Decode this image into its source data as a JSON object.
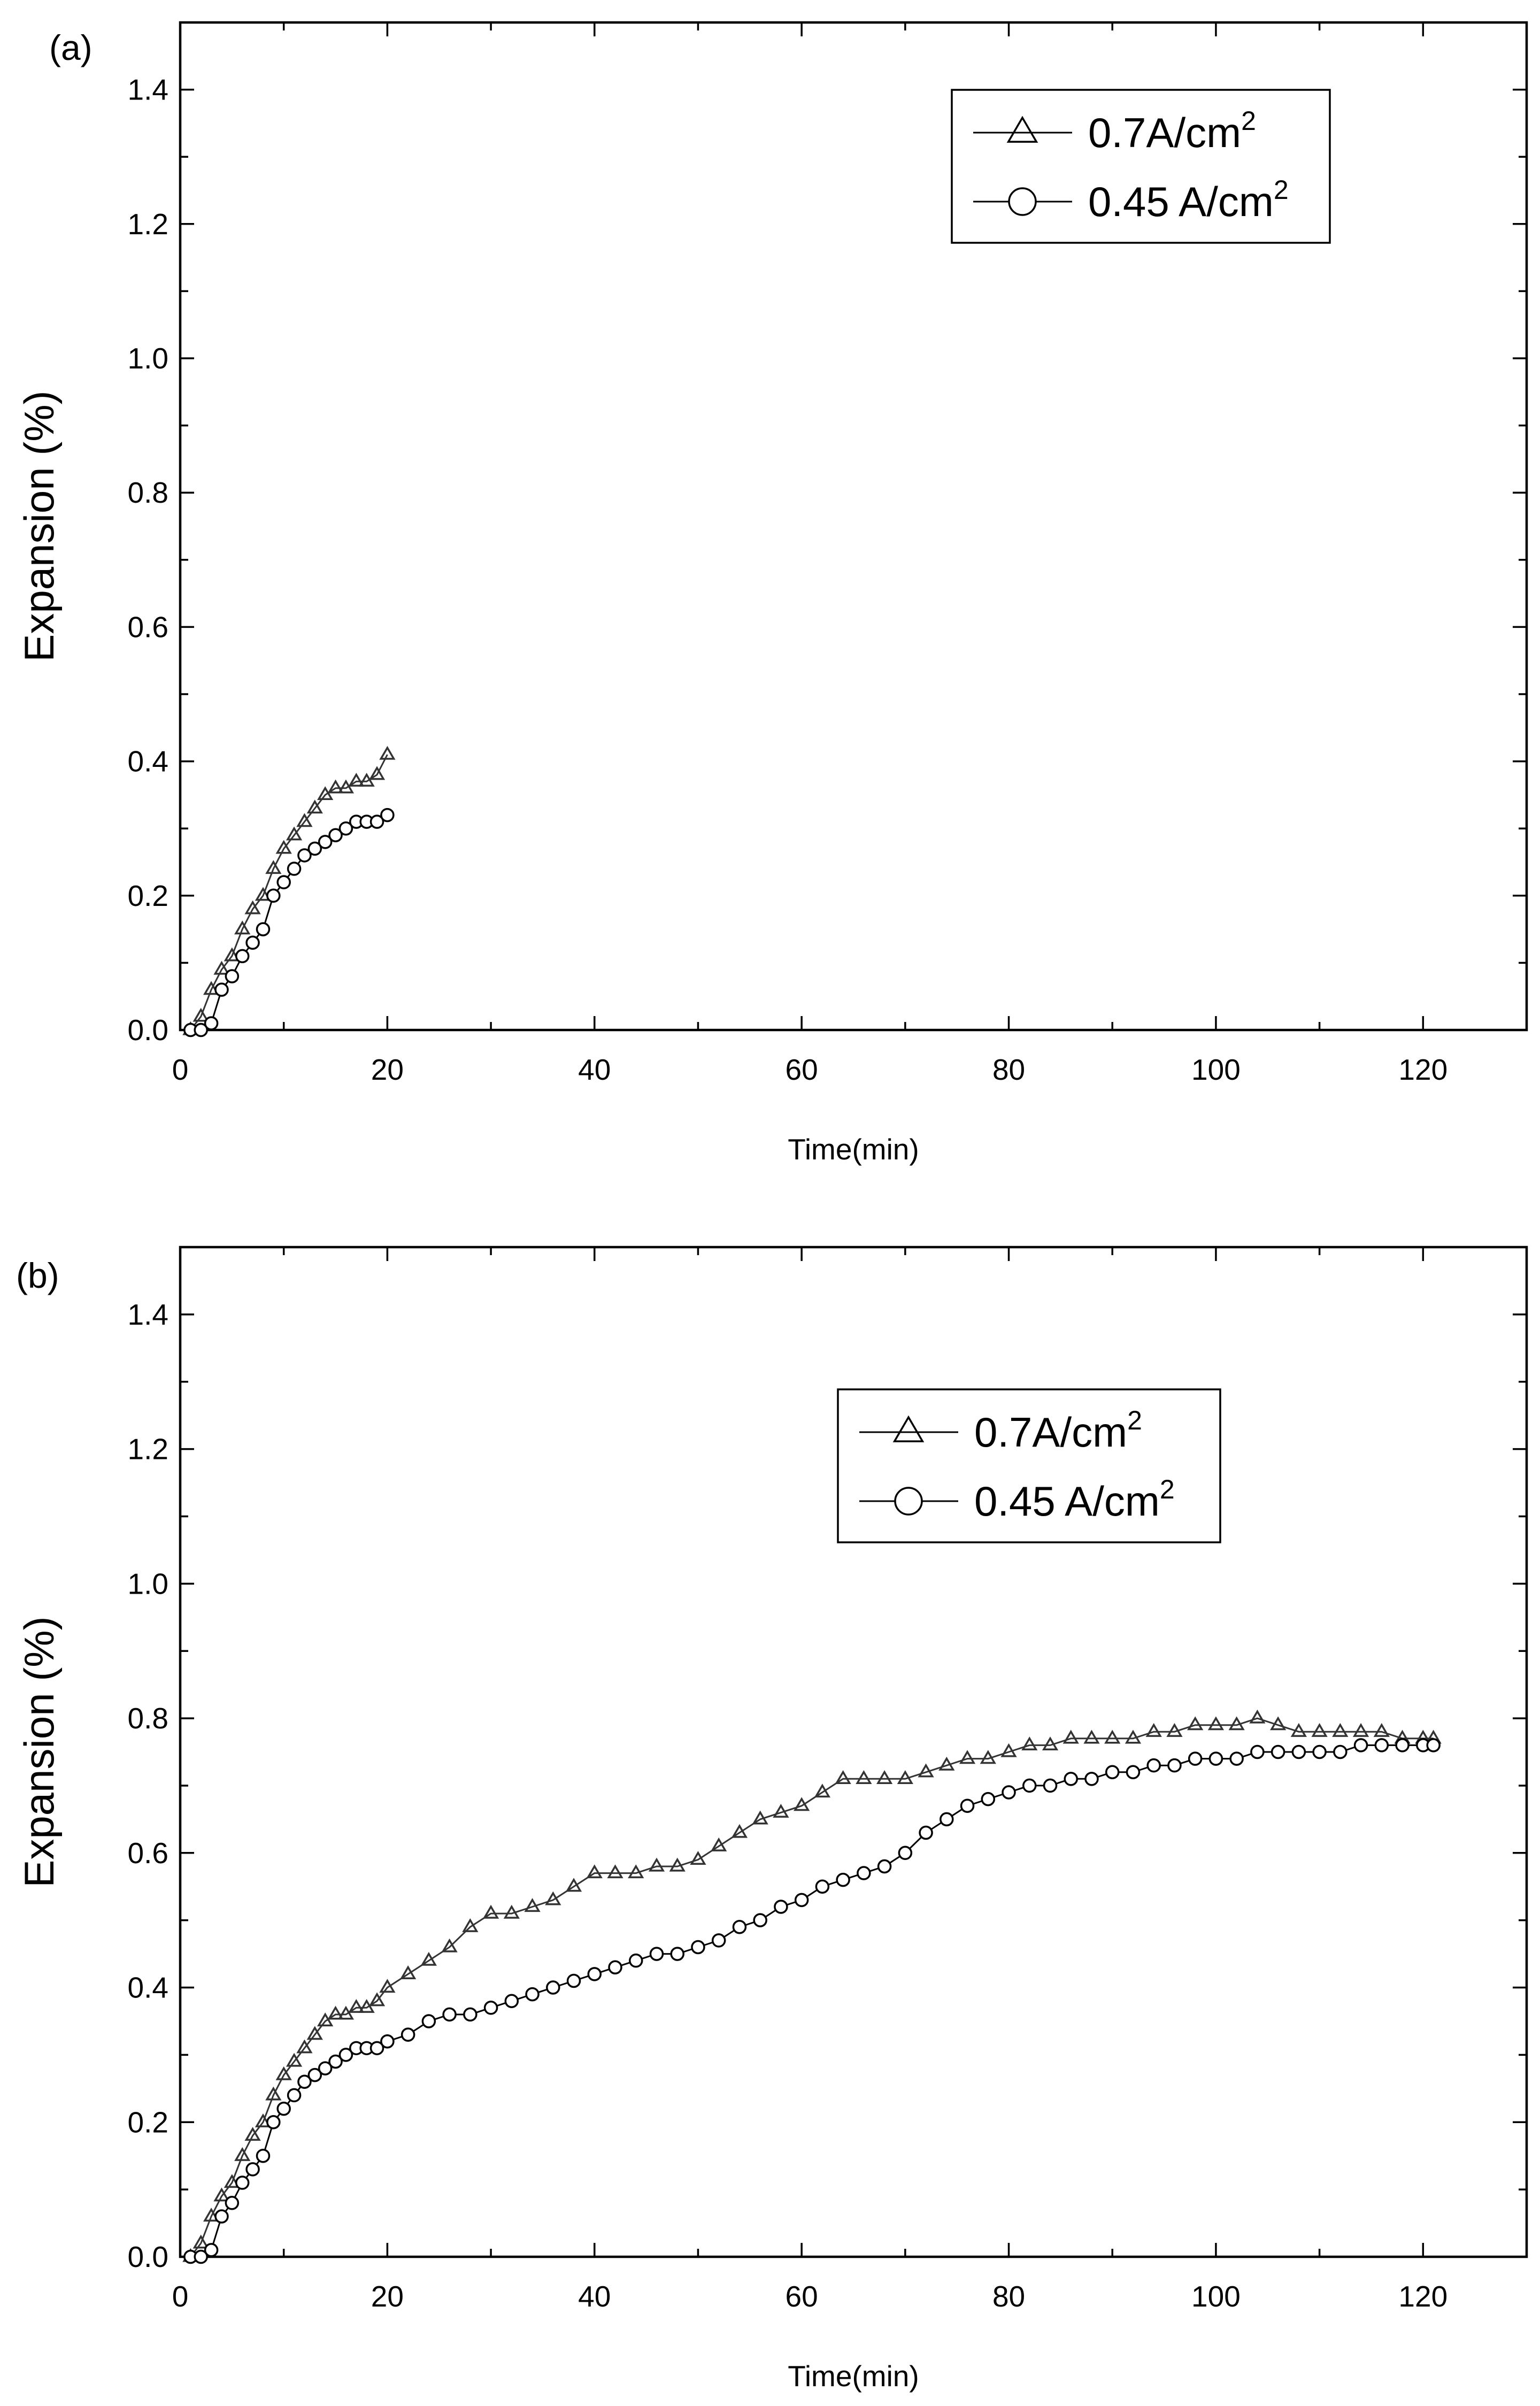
{
  "chart_data": [
    {
      "type": "line",
      "panel_label": "(a)",
      "title": "",
      "xlabel": "Time(min)",
      "ylabel": "Expansion (%)",
      "xlim": [
        0,
        130
      ],
      "ylim": [
        0,
        1.5
      ],
      "xticks": [
        0,
        20,
        40,
        60,
        80,
        100,
        120
      ],
      "yticks": [
        0.0,
        0.2,
        0.4,
        0.6,
        0.8,
        1.0,
        1.2,
        1.4
      ],
      "xtick_labels": [
        "0",
        "20",
        "40",
        "60",
        "80",
        "100",
        "120"
      ],
      "ytick_labels": [
        "0.0",
        "0.2",
        "0.4",
        "0.6",
        "0.8",
        "1.0",
        "1.2",
        "1.4"
      ],
      "legend_position": "top-right",
      "series": [
        {
          "name": "0.7A/cm",
          "name_sup": "2",
          "marker": "triangle",
          "x": [
            1,
            2,
            3,
            4,
            5,
            6,
            7,
            8,
            9,
            10,
            11,
            12,
            13,
            14,
            15,
            16,
            17,
            18,
            19,
            20
          ],
          "y": [
            0.0,
            0.02,
            0.06,
            0.09,
            0.11,
            0.15,
            0.18,
            0.2,
            0.24,
            0.27,
            0.29,
            0.31,
            0.33,
            0.35,
            0.36,
            0.36,
            0.37,
            0.37,
            0.38,
            0.41
          ]
        },
        {
          "name": "0.45 A/cm",
          "name_sup": "2",
          "marker": "circle",
          "x": [
            1,
            2,
            3,
            4,
            5,
            6,
            7,
            8,
            9,
            10,
            11,
            12,
            13,
            14,
            15,
            16,
            17,
            18,
            19,
            20
          ],
          "y": [
            0.0,
            0.0,
            0.01,
            0.06,
            0.08,
            0.11,
            0.13,
            0.15,
            0.2,
            0.22,
            0.24,
            0.26,
            0.27,
            0.28,
            0.29,
            0.3,
            0.31,
            0.31,
            0.31,
            0.32
          ]
        }
      ]
    },
    {
      "type": "line",
      "panel_label": "(b)",
      "title": "",
      "xlabel": "Time(min)",
      "ylabel": "Expansion (%)",
      "xlim": [
        0,
        130
      ],
      "ylim": [
        0,
        1.5
      ],
      "xticks": [
        0,
        20,
        40,
        60,
        80,
        100,
        120
      ],
      "yticks": [
        0.0,
        0.2,
        0.4,
        0.6,
        0.8,
        1.0,
        1.2,
        1.4
      ],
      "xtick_labels": [
        "0",
        "20",
        "40",
        "60",
        "80",
        "100",
        "120"
      ],
      "ytick_labels": [
        "0.0",
        "0.2",
        "0.4",
        "0.6",
        "0.8",
        "1.0",
        "1.2",
        "1.4"
      ],
      "legend_position": "top-center",
      "series": [
        {
          "name": "0.7A/cm",
          "name_sup": "2",
          "marker": "triangle",
          "x": [
            1,
            2,
            3,
            4,
            5,
            6,
            7,
            8,
            9,
            10,
            11,
            12,
            13,
            14,
            15,
            16,
            17,
            18,
            19,
            20,
            22,
            24,
            26,
            28,
            30,
            32,
            34,
            36,
            38,
            40,
            42,
            44,
            46,
            48,
            50,
            52,
            54,
            56,
            58,
            60,
            62,
            64,
            66,
            68,
            70,
            72,
            74,
            76,
            78,
            80,
            82,
            84,
            86,
            88,
            90,
            92,
            94,
            96,
            98,
            100,
            102,
            104,
            106,
            108,
            110,
            112,
            114,
            116,
            118,
            120,
            121
          ],
          "y": [
            0.0,
            0.02,
            0.06,
            0.09,
            0.11,
            0.15,
            0.18,
            0.2,
            0.24,
            0.27,
            0.29,
            0.31,
            0.33,
            0.35,
            0.36,
            0.36,
            0.37,
            0.37,
            0.38,
            0.4,
            0.42,
            0.44,
            0.46,
            0.49,
            0.51,
            0.51,
            0.52,
            0.53,
            0.55,
            0.57,
            0.57,
            0.57,
            0.58,
            0.58,
            0.59,
            0.61,
            0.63,
            0.65,
            0.66,
            0.67,
            0.69,
            0.71,
            0.71,
            0.71,
            0.71,
            0.72,
            0.73,
            0.74,
            0.74,
            0.75,
            0.76,
            0.76,
            0.77,
            0.77,
            0.77,
            0.77,
            0.78,
            0.78,
            0.79,
            0.79,
            0.79,
            0.8,
            0.79,
            0.78,
            0.78,
            0.78,
            0.78,
            0.78,
            0.77,
            0.77,
            0.77
          ]
        },
        {
          "name": "0.45 A/cm",
          "name_sup": "2",
          "marker": "circle",
          "x": [
            1,
            2,
            3,
            4,
            5,
            6,
            7,
            8,
            9,
            10,
            11,
            12,
            13,
            14,
            15,
            16,
            17,
            18,
            19,
            20,
            22,
            24,
            26,
            28,
            30,
            32,
            34,
            36,
            38,
            40,
            42,
            44,
            46,
            48,
            50,
            52,
            54,
            56,
            58,
            60,
            62,
            64,
            66,
            68,
            70,
            72,
            74,
            76,
            78,
            80,
            82,
            84,
            86,
            88,
            90,
            92,
            94,
            96,
            98,
            100,
            102,
            104,
            106,
            108,
            110,
            112,
            114,
            116,
            118,
            120,
            121
          ],
          "y": [
            0.0,
            0.0,
            0.01,
            0.06,
            0.08,
            0.11,
            0.13,
            0.15,
            0.2,
            0.22,
            0.24,
            0.26,
            0.27,
            0.28,
            0.29,
            0.3,
            0.31,
            0.31,
            0.31,
            0.32,
            0.33,
            0.35,
            0.36,
            0.36,
            0.37,
            0.38,
            0.39,
            0.4,
            0.41,
            0.42,
            0.43,
            0.44,
            0.45,
            0.45,
            0.46,
            0.47,
            0.49,
            0.5,
            0.52,
            0.53,
            0.55,
            0.56,
            0.57,
            0.58,
            0.6,
            0.63,
            0.65,
            0.67,
            0.68,
            0.69,
            0.7,
            0.7,
            0.71,
            0.71,
            0.72,
            0.72,
            0.73,
            0.73,
            0.74,
            0.74,
            0.74,
            0.75,
            0.75,
            0.75,
            0.75,
            0.75,
            0.76,
            0.76,
            0.76,
            0.76,
            0.76
          ]
        }
      ]
    }
  ]
}
